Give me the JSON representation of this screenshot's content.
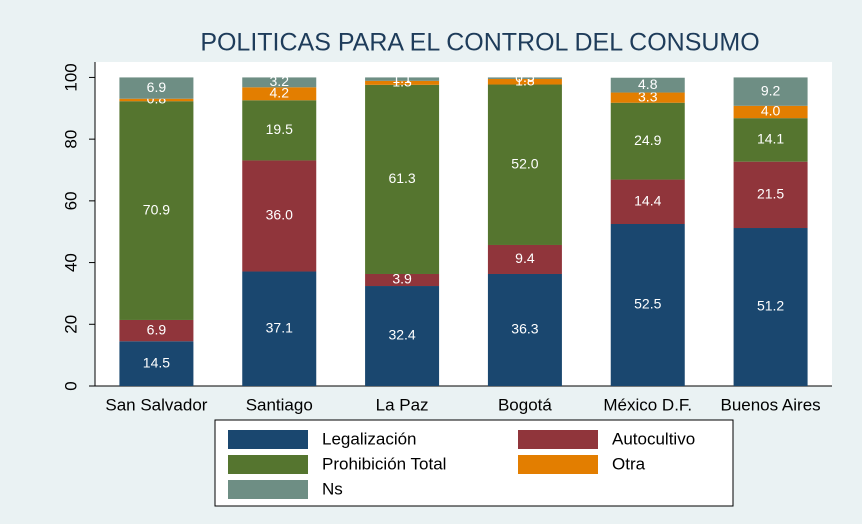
{
  "chart_data": {
    "type": "stacked_bar",
    "title": "POLITICAS PARA EL CONTROL DEL CONSUMO",
    "categories": [
      "San Salvador",
      "Santiago",
      "La Paz",
      "Bogotá",
      "México D.F.",
      "Buenos Aires"
    ],
    "series": [
      {
        "name": "Legalización",
        "color": "#1a476f",
        "values": [
          14.5,
          37.1,
          32.4,
          36.3,
          52.5,
          51.2
        ],
        "value_labels": [
          "14.5",
          "37.1",
          "32.4",
          "36.3",
          "52.5",
          "51.2"
        ]
      },
      {
        "name": "Autocultivo",
        "color": "#90353b",
        "values": [
          6.9,
          36.0,
          3.9,
          9.4,
          14.4,
          21.5
        ],
        "value_labels": [
          "6.9",
          "36.0",
          "3.9",
          "9.4",
          "14.4",
          "21.5"
        ]
      },
      {
        "name": "Prohibición Total",
        "color": "#55752f",
        "values": [
          70.9,
          19.5,
          61.3,
          52.0,
          24.9,
          14.1
        ],
        "value_labels": [
          "70.9",
          "19.5",
          "61.3",
          "52.0",
          "24.9",
          "14.1"
        ]
      },
      {
        "name": "Otra",
        "color": "#e37e00",
        "values": [
          0.8,
          4.2,
          1.3,
          1.8,
          3.3,
          4.0
        ],
        "value_labels": [
          "0.8",
          "4.2",
          "1.3",
          "1.8",
          "3.3",
          "4.0"
        ]
      },
      {
        "name": "Ns",
        "color": "#6e8e84",
        "values": [
          6.9,
          3.2,
          1.1,
          0.5,
          4.8,
          9.2
        ],
        "value_labels": [
          "6.9",
          "3.2",
          "1.1",
          "0.5",
          "4.8",
          "9.2"
        ]
      }
    ],
    "ylim": [
      0,
      105
    ],
    "yticks": [
      0,
      20,
      40,
      60,
      80,
      100
    ]
  }
}
